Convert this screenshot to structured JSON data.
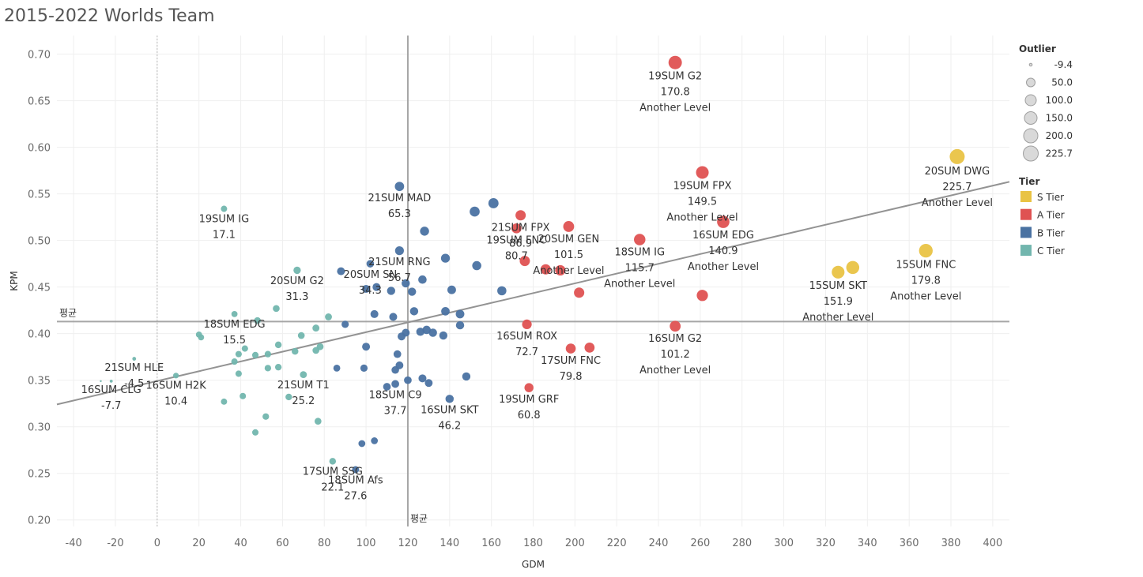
{
  "chart_data": {
    "type": "scatter",
    "title": "2015-2022 Worlds Team",
    "xlabel": "GDM",
    "ylabel": "KPM",
    "xlim": [
      -48,
      408
    ],
    "ylim": [
      0.193,
      0.72
    ],
    "xticks": [
      -40,
      -20,
      0,
      20,
      40,
      60,
      80,
      100,
      120,
      140,
      160,
      180,
      200,
      220,
      240,
      260,
      280,
      300,
      320,
      340,
      360,
      380,
      400
    ],
    "yticks": [
      0.2,
      0.25,
      0.3,
      0.35,
      0.4,
      0.45,
      0.5,
      0.55,
      0.6,
      0.65,
      0.7
    ],
    "grid": true,
    "reference_lines": {
      "avg_x": 120,
      "avg_y": 0.413,
      "avg_label": "평균",
      "zero_x": 0
    },
    "trend_line": {
      "x0": -48,
      "y0": 0.324,
      "x1": 408,
      "y1": 0.563
    },
    "tiers": [
      {
        "name": "S Tier",
        "color": "#E9C344"
      },
      {
        "name": "A Tier",
        "color": "#DF5252"
      },
      {
        "name": "B Tier",
        "color": "#4A72A2"
      },
      {
        "name": "C Tier",
        "color": "#72B6AE"
      }
    ],
    "size_legend": {
      "title": "Outlier",
      "values": [
        "-9.4",
        "50.0",
        "100.0",
        "150.0",
        "200.0",
        "225.7"
      ]
    },
    "tier_legend_title": "Tier",
    "points": [
      {
        "x": 248,
        "y": 0.691,
        "tier": "A Tier",
        "outlier": 170.8,
        "label": [
          "19SUM G2",
          "170.8",
          "Another Level"
        ]
      },
      {
        "x": 261,
        "y": 0.573,
        "tier": "A Tier",
        "outlier": 149.5,
        "label": [
          "19SUM FPX",
          "149.5",
          "Another Level"
        ]
      },
      {
        "x": 383,
        "y": 0.59,
        "tier": "S Tier",
        "outlier": 225.7,
        "label": [
          "20SUM DWG",
          "225.7",
          "Another Level"
        ]
      },
      {
        "x": 271,
        "y": 0.52,
        "tier": "A Tier",
        "outlier": 140.9,
        "label": [
          "16SUM EDG",
          "140.9",
          "Another Level"
        ]
      },
      {
        "x": 368,
        "y": 0.489,
        "tier": "S Tier",
        "outlier": 179.8,
        "label": [
          "15SUM FNC",
          "179.8",
          "Another Level"
        ]
      },
      {
        "x": 326,
        "y": 0.466,
        "tier": "S Tier",
        "outlier": 151.9,
        "label": [
          "15SUM SKT",
          "151.9",
          "Another Level"
        ]
      },
      {
        "x": 333,
        "y": 0.471,
        "tier": "S Tier",
        "outlier": 160.0
      },
      {
        "x": 231,
        "y": 0.501,
        "tier": "A Tier",
        "outlier": 115.7,
        "label": [
          "18SUM IG",
          "115.7",
          "Another Level"
        ]
      },
      {
        "x": 197,
        "y": 0.515,
        "tier": "A Tier",
        "outlier": 101.5,
        "label": [
          "20SUM GEN",
          "101.5",
          "Another Level"
        ]
      },
      {
        "x": 248,
        "y": 0.408,
        "tier": "A Tier",
        "outlier": 101.2,
        "label": [
          "16SUM G2",
          "101.2",
          "Another Level"
        ]
      },
      {
        "x": 174,
        "y": 0.527,
        "tier": "A Tier",
        "outlier": 86.9,
        "label": [
          "21SUM FPX",
          "86.9"
        ]
      },
      {
        "x": 172,
        "y": 0.513,
        "tier": "A Tier",
        "outlier": 80.7,
        "label": [
          "19SUM FNC",
          "80.7"
        ]
      },
      {
        "x": 177,
        "y": 0.41,
        "tier": "A Tier",
        "outlier": 72.7,
        "label": [
          "16SUM ROX",
          "72.7"
        ]
      },
      {
        "x": 198,
        "y": 0.384,
        "tier": "A Tier",
        "outlier": 79.8,
        "label": [
          "17SUM FNC",
          "79.8"
        ]
      },
      {
        "x": 207,
        "y": 0.385,
        "tier": "A Tier",
        "outlier": 82.0
      },
      {
        "x": 178,
        "y": 0.342,
        "tier": "A Tier",
        "outlier": 60.8,
        "label": [
          "19SUM GRF",
          "60.8"
        ]
      },
      {
        "x": 176,
        "y": 0.478,
        "tier": "A Tier",
        "outlier": 85.0
      },
      {
        "x": 186,
        "y": 0.469,
        "tier": "A Tier",
        "outlier": 88.0
      },
      {
        "x": 193,
        "y": 0.468,
        "tier": "A Tier",
        "outlier": 90.0
      },
      {
        "x": 202,
        "y": 0.444,
        "tier": "A Tier",
        "outlier": 88.0
      },
      {
        "x": 261,
        "y": 0.441,
        "tier": "A Tier",
        "outlier": 110.0
      },
      {
        "x": 116,
        "y": 0.558,
        "tier": "B Tier",
        "outlier": 65.3,
        "label": [
          "21SUM MAD",
          "65.3"
        ]
      },
      {
        "x": 116,
        "y": 0.489,
        "tier": "B Tier",
        "outlier": 56.7,
        "label": [
          "21SUM RNG",
          "56.7"
        ]
      },
      {
        "x": 102,
        "y": 0.475,
        "tier": "B Tier",
        "outlier": 34.3,
        "label": [
          "20SUM SN",
          "34.3"
        ]
      },
      {
        "x": 114,
        "y": 0.346,
        "tier": "B Tier",
        "outlier": 37.7,
        "label": [
          "18SUM C9",
          "37.7"
        ]
      },
      {
        "x": 140,
        "y": 0.33,
        "tier": "B Tier",
        "outlier": 46.2,
        "label": [
          "16SUM SKT",
          "46.2"
        ]
      },
      {
        "x": 95,
        "y": 0.254,
        "tier": "B Tier",
        "outlier": 27.6,
        "label": [
          "18SUM Afs",
          "27.6"
        ]
      },
      {
        "x": 152,
        "y": 0.531,
        "tier": "B Tier",
        "outlier": 80.0
      },
      {
        "x": 161,
        "y": 0.54,
        "tier": "B Tier",
        "outlier": 84.0
      },
      {
        "x": 128,
        "y": 0.51,
        "tier": "B Tier",
        "outlier": 60.0
      },
      {
        "x": 138,
        "y": 0.481,
        "tier": "B Tier",
        "outlier": 58.0
      },
      {
        "x": 153,
        "y": 0.473,
        "tier": "B Tier",
        "outlier": 62.0
      },
      {
        "x": 165,
        "y": 0.446,
        "tier": "B Tier",
        "outlier": 62.0
      },
      {
        "x": 88,
        "y": 0.467,
        "tier": "B Tier",
        "outlier": 40.0
      },
      {
        "x": 100,
        "y": 0.448,
        "tier": "B Tier",
        "outlier": 40.0
      },
      {
        "x": 105,
        "y": 0.45,
        "tier": "B Tier",
        "outlier": 40.0
      },
      {
        "x": 112,
        "y": 0.446,
        "tier": "B Tier",
        "outlier": 45.0
      },
      {
        "x": 119,
        "y": 0.454,
        "tier": "B Tier",
        "outlier": 45.0
      },
      {
        "x": 122,
        "y": 0.445,
        "tier": "B Tier",
        "outlier": 45.0
      },
      {
        "x": 127,
        "y": 0.458,
        "tier": "B Tier",
        "outlier": 48.0
      },
      {
        "x": 141,
        "y": 0.447,
        "tier": "B Tier",
        "outlier": 52.0
      },
      {
        "x": 104,
        "y": 0.421,
        "tier": "B Tier",
        "outlier": 40.0
      },
      {
        "x": 113,
        "y": 0.418,
        "tier": "B Tier",
        "outlier": 40.0
      },
      {
        "x": 123,
        "y": 0.424,
        "tier": "B Tier",
        "outlier": 46.0
      },
      {
        "x": 138,
        "y": 0.424,
        "tier": "B Tier",
        "outlier": 50.0
      },
      {
        "x": 145,
        "y": 0.421,
        "tier": "B Tier",
        "outlier": 52.0
      },
      {
        "x": 145,
        "y": 0.409,
        "tier": "B Tier",
        "outlier": 46.0
      },
      {
        "x": 90,
        "y": 0.41,
        "tier": "B Tier",
        "outlier": 30.0
      },
      {
        "x": 119,
        "y": 0.401,
        "tier": "B Tier",
        "outlier": 40.0
      },
      {
        "x": 117,
        "y": 0.397,
        "tier": "B Tier",
        "outlier": 40.0
      },
      {
        "x": 126,
        "y": 0.402,
        "tier": "B Tier",
        "outlier": 45.0
      },
      {
        "x": 129,
        "y": 0.404,
        "tier": "B Tier",
        "outlier": 48.0
      },
      {
        "x": 132,
        "y": 0.401,
        "tier": "B Tier",
        "outlier": 46.0
      },
      {
        "x": 137,
        "y": 0.398,
        "tier": "B Tier",
        "outlier": 44.0
      },
      {
        "x": 100,
        "y": 0.386,
        "tier": "B Tier",
        "outlier": 40.0
      },
      {
        "x": 115,
        "y": 0.378,
        "tier": "B Tier",
        "outlier": 36.0
      },
      {
        "x": 116,
        "y": 0.366,
        "tier": "B Tier",
        "outlier": 38.0
      },
      {
        "x": 114,
        "y": 0.361,
        "tier": "B Tier",
        "outlier": 35.0
      },
      {
        "x": 99,
        "y": 0.363,
        "tier": "B Tier",
        "outlier": 30.0
      },
      {
        "x": 86,
        "y": 0.363,
        "tier": "B Tier",
        "outlier": 25.0
      },
      {
        "x": 127,
        "y": 0.352,
        "tier": "B Tier",
        "outlier": 40.0
      },
      {
        "x": 130,
        "y": 0.347,
        "tier": "B Tier",
        "outlier": 38.0
      },
      {
        "x": 120,
        "y": 0.35,
        "tier": "B Tier",
        "outlier": 36.0
      },
      {
        "x": 110,
        "y": 0.343,
        "tier": "B Tier",
        "outlier": 36.0
      },
      {
        "x": 148,
        "y": 0.354,
        "tier": "B Tier",
        "outlier": 45.0
      },
      {
        "x": 104,
        "y": 0.285,
        "tier": "B Tier",
        "outlier": 25.0
      },
      {
        "x": 98,
        "y": 0.282,
        "tier": "B Tier",
        "outlier": 25.0
      },
      {
        "x": 32,
        "y": 0.534,
        "tier": "C Tier",
        "outlier": 17.1,
        "label": [
          "19SUM IG",
          "17.1"
        ]
      },
      {
        "x": 67,
        "y": 0.468,
        "tier": "C Tier",
        "outlier": 31.3,
        "label": [
          "20SUM G2",
          "31.3"
        ]
      },
      {
        "x": 37,
        "y": 0.421,
        "tier": "C Tier",
        "outlier": 15.5,
        "label": [
          "18SUM EDG",
          "15.5"
        ]
      },
      {
        "x": -11,
        "y": 0.373,
        "tier": "C Tier",
        "outlier": -4.5,
        "label": [
          "21SUM HLE",
          "-4.5"
        ]
      },
      {
        "x": -22,
        "y": 0.349,
        "tier": "C Tier",
        "outlier": -7.7,
        "label": [
          "16SUM CLG",
          "-7.7"
        ]
      },
      {
        "x": 9,
        "y": 0.355,
        "tier": "C Tier",
        "outlier": 10.4,
        "label": [
          "16SUM H2K",
          "10.4"
        ]
      },
      {
        "x": 70,
        "y": 0.356,
        "tier": "C Tier",
        "outlier": 25.2,
        "label": [
          "21SUM T1",
          "25.2"
        ]
      },
      {
        "x": 84,
        "y": 0.263,
        "tier": "C Tier",
        "outlier": 22.1,
        "label": [
          "17SUM SSG",
          "22.1"
        ]
      },
      {
        "x": -27,
        "y": 0.349,
        "tier": "C Tier",
        "outlier": -9.4
      },
      {
        "x": 57,
        "y": 0.427,
        "tier": "C Tier",
        "outlier": 24.0
      },
      {
        "x": 48,
        "y": 0.414,
        "tier": "C Tier",
        "outlier": 22.0
      },
      {
        "x": 82,
        "y": 0.418,
        "tier": "C Tier",
        "outlier": 26.0
      },
      {
        "x": 76,
        "y": 0.406,
        "tier": "C Tier",
        "outlier": 26.0
      },
      {
        "x": 69,
        "y": 0.398,
        "tier": "C Tier",
        "outlier": 24.0
      },
      {
        "x": 21,
        "y": 0.396,
        "tier": "C Tier",
        "outlier": 15.0
      },
      {
        "x": 20,
        "y": 0.399,
        "tier": "C Tier",
        "outlier": 15.0
      },
      {
        "x": 58,
        "y": 0.388,
        "tier": "C Tier",
        "outlier": 22.0
      },
      {
        "x": 78,
        "y": 0.386,
        "tier": "C Tier",
        "outlier": 25.0
      },
      {
        "x": 76,
        "y": 0.382,
        "tier": "C Tier",
        "outlier": 24.0
      },
      {
        "x": 42,
        "y": 0.384,
        "tier": "C Tier",
        "outlier": 18.0
      },
      {
        "x": 39,
        "y": 0.378,
        "tier": "C Tier",
        "outlier": 18.0
      },
      {
        "x": 47,
        "y": 0.377,
        "tier": "C Tier",
        "outlier": 19.0
      },
      {
        "x": 53,
        "y": 0.378,
        "tier": "C Tier",
        "outlier": 20.0
      },
      {
        "x": 66,
        "y": 0.381,
        "tier": "C Tier",
        "outlier": 22.0
      },
      {
        "x": 37,
        "y": 0.37,
        "tier": "C Tier",
        "outlier": 18.0
      },
      {
        "x": 53,
        "y": 0.363,
        "tier": "C Tier",
        "outlier": 20.0
      },
      {
        "x": 58,
        "y": 0.364,
        "tier": "C Tier",
        "outlier": 21.0
      },
      {
        "x": 39,
        "y": 0.357,
        "tier": "C Tier",
        "outlier": 18.0
      },
      {
        "x": 41,
        "y": 0.333,
        "tier": "C Tier",
        "outlier": 18.0
      },
      {
        "x": 32,
        "y": 0.327,
        "tier": "C Tier",
        "outlier": 16.0
      },
      {
        "x": 63,
        "y": 0.332,
        "tier": "C Tier",
        "outlier": 21.0
      },
      {
        "x": 52,
        "y": 0.311,
        "tier": "C Tier",
        "outlier": 20.0
      },
      {
        "x": 77,
        "y": 0.306,
        "tier": "C Tier",
        "outlier": 24.0
      },
      {
        "x": 47,
        "y": 0.294,
        "tier": "C Tier",
        "outlier": 18.0
      }
    ]
  }
}
